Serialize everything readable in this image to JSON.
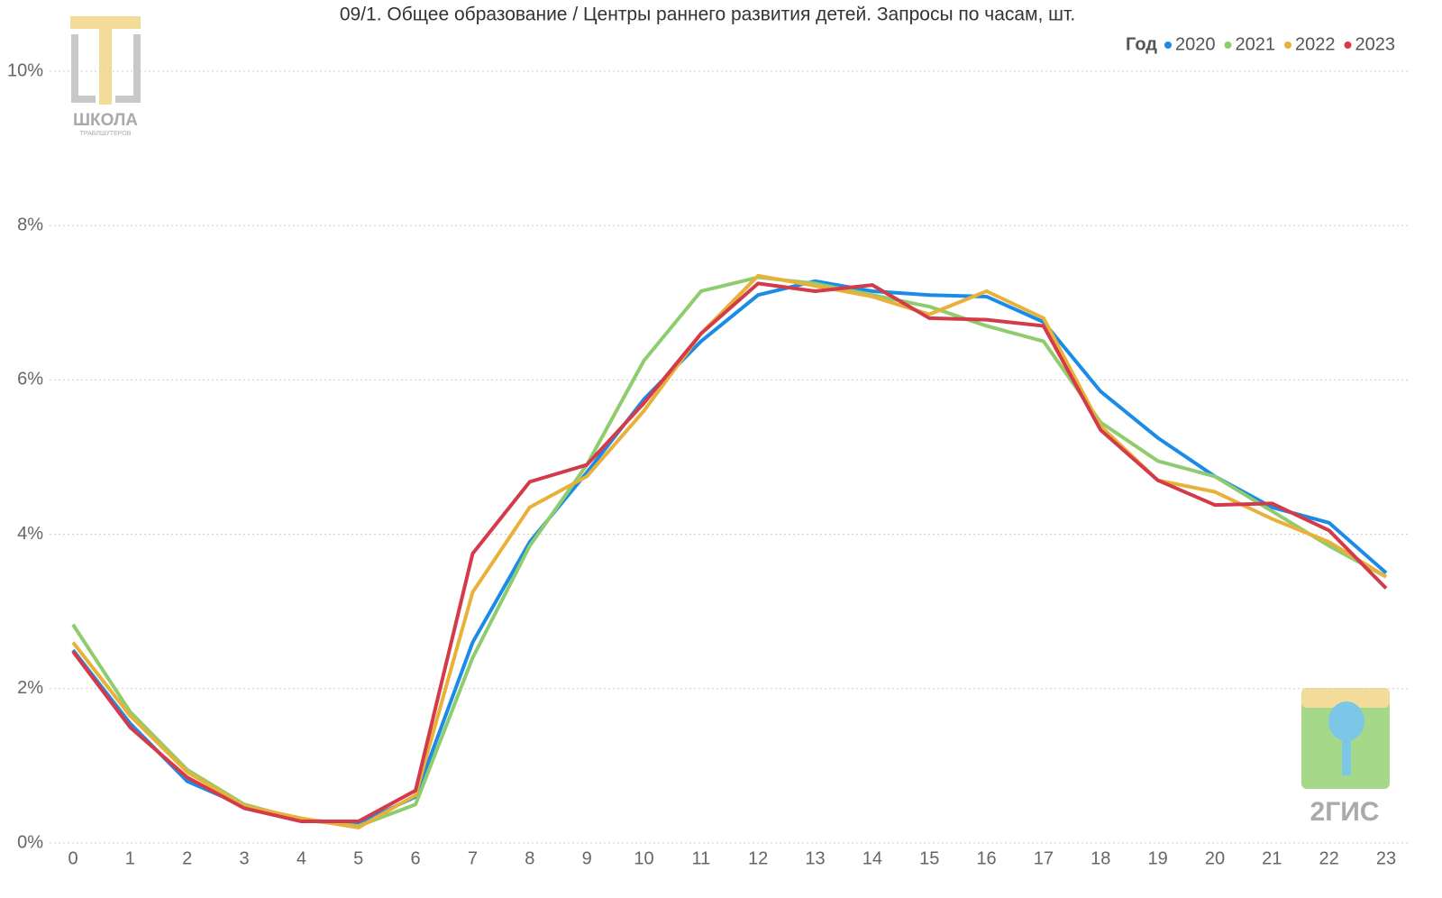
{
  "chart_data": {
    "type": "line",
    "title": "09/1. Общее образование / Центры раннего развития детей. Запросы по часам, шт.",
    "legend_title": "Год",
    "legend": "top-right",
    "grid": true,
    "x": [
      0,
      1,
      2,
      3,
      4,
      5,
      6,
      7,
      8,
      9,
      10,
      11,
      12,
      13,
      14,
      15,
      16,
      17,
      18,
      19,
      20,
      21,
      22,
      23
    ],
    "xlim": [
      0,
      23
    ],
    "ylim": [
      0,
      10
    ],
    "yticks": [
      {
        "value": 0,
        "label": "0%"
      },
      {
        "value": 2,
        "label": "2%"
      },
      {
        "value": 4,
        "label": "4%"
      },
      {
        "value": 6,
        "label": "6%"
      },
      {
        "value": 8,
        "label": "8%"
      },
      {
        "value": 10,
        "label": "10%"
      }
    ],
    "series": [
      {
        "name": "2020",
        "color": "#1a8ce8",
        "values": [
          2.5,
          1.55,
          0.8,
          0.48,
          0.3,
          0.25,
          0.6,
          2.6,
          3.9,
          4.8,
          5.75,
          6.5,
          7.1,
          7.28,
          7.15,
          7.1,
          7.08,
          6.75,
          5.85,
          5.25,
          4.75,
          4.35,
          4.15,
          3.5
        ]
      },
      {
        "name": "2021",
        "color": "#8fcc6e",
        "values": [
          2.83,
          1.7,
          0.95,
          0.5,
          0.3,
          0.22,
          0.5,
          2.4,
          3.85,
          4.9,
          6.25,
          7.15,
          7.33,
          7.25,
          7.1,
          6.95,
          6.7,
          6.5,
          5.45,
          4.95,
          4.75,
          4.3,
          3.85,
          3.45
        ]
      },
      {
        "name": "2022",
        "color": "#e8b23a",
        "values": [
          2.6,
          1.65,
          0.92,
          0.48,
          0.32,
          0.2,
          0.62,
          3.25,
          4.35,
          4.75,
          5.6,
          6.6,
          7.35,
          7.22,
          7.08,
          6.85,
          7.15,
          6.8,
          5.4,
          4.7,
          4.55,
          4.2,
          3.9,
          3.45
        ]
      },
      {
        "name": "2023",
        "color": "#d43a4a",
        "values": [
          2.48,
          1.5,
          0.85,
          0.45,
          0.28,
          0.28,
          0.68,
          3.75,
          4.68,
          4.9,
          5.7,
          6.6,
          7.25,
          7.15,
          7.23,
          6.8,
          6.78,
          6.7,
          5.35,
          4.7,
          4.38,
          4.4,
          4.05,
          3.3
        ]
      }
    ]
  },
  "logos": {
    "school": "ШКОЛА",
    "school_sub": "ТРАБЛШУТЕРОВ",
    "gis": "2ГИС"
  }
}
